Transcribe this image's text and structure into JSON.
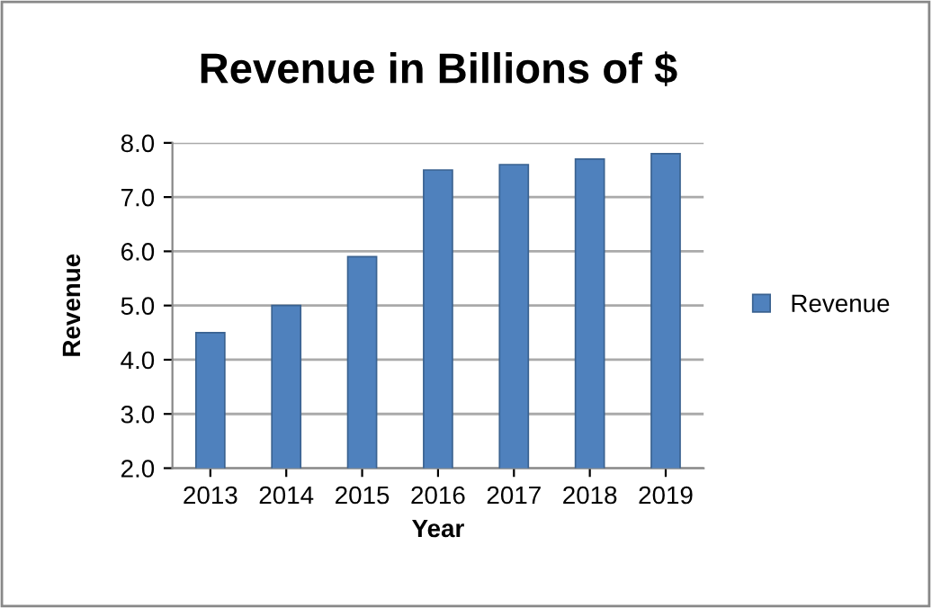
{
  "chart_data": {
    "type": "bar",
    "title": "Revenue in Billions of $",
    "xlabel": "Year",
    "ylabel": "Revenue",
    "categories": [
      "2013",
      "2014",
      "2015",
      "2016",
      "2017",
      "2018",
      "2019"
    ],
    "series": [
      {
        "name": "Revenue",
        "color": "#4f81bd",
        "values": [
          4.5,
          5.0,
          5.9,
          7.5,
          7.6,
          7.7,
          7.8
        ]
      }
    ],
    "ylim": [
      2.0,
      8.0
    ],
    "yticks": [
      {
        "value": 2,
        "label": "2.0"
      },
      {
        "value": 3,
        "label": "3.0"
      },
      {
        "value": 4,
        "label": "4.0"
      },
      {
        "value": 5,
        "label": "5.0"
      },
      {
        "value": 6,
        "label": "6.0"
      },
      {
        "value": 7,
        "label": "7.0"
      },
      {
        "value": 8,
        "label": "8.0"
      }
    ],
    "grid": "y",
    "legend": "right"
  }
}
